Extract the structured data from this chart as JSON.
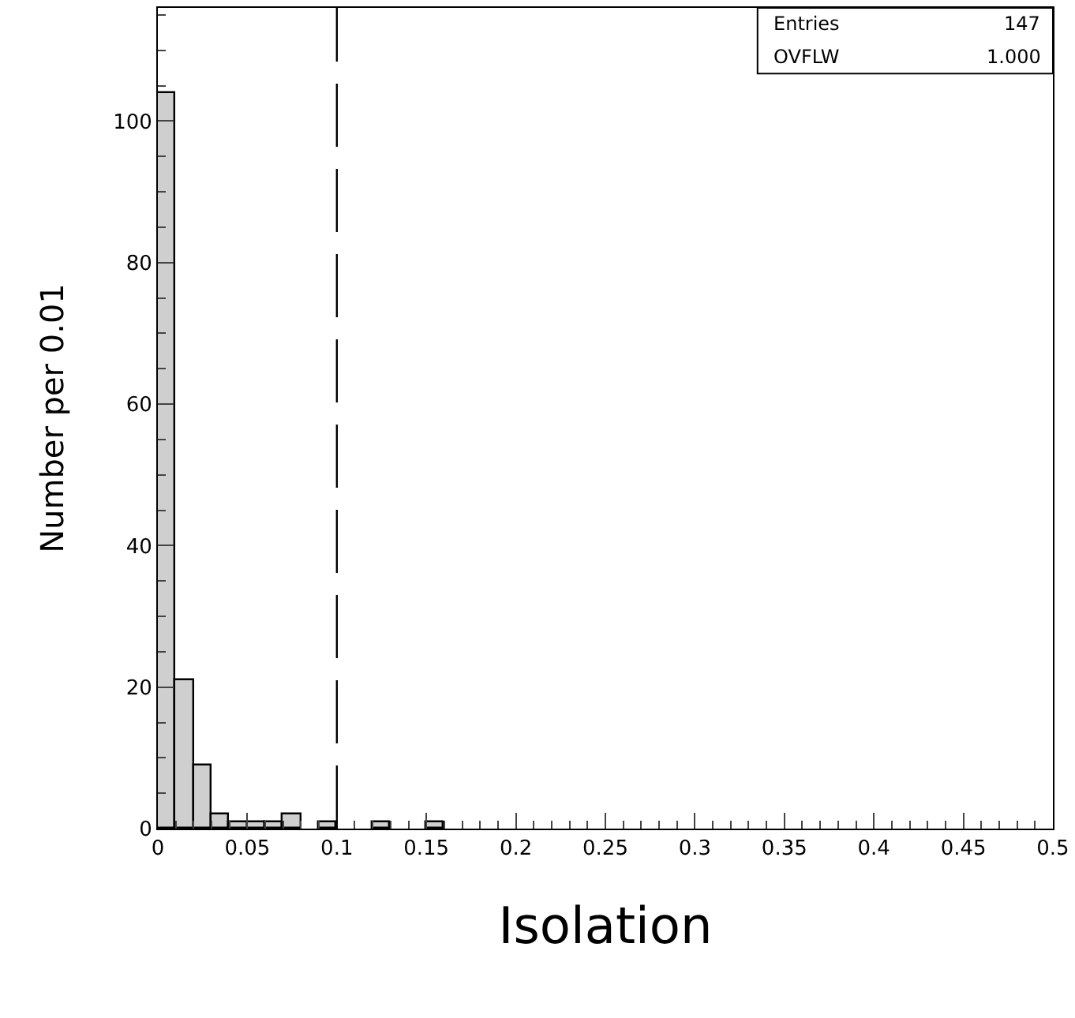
{
  "chart_data": {
    "type": "histogram",
    "xlabel": "Isolation",
    "ylabel": "Number per 0.01",
    "bins": [
      0,
      0.01,
      0.02,
      0.03,
      0.04,
      0.05,
      0.06,
      0.07,
      0.08,
      0.09,
      0.1,
      0.11,
      0.12,
      0.13,
      0.14,
      0.15,
      0.16,
      0.17,
      0.18,
      0.19,
      0.2,
      0.21,
      0.22,
      0.23,
      0.24,
      0.25,
      0.26,
      0.27,
      0.28,
      0.29,
      0.3,
      0.31,
      0.32,
      0.33,
      0.34,
      0.35,
      0.36,
      0.37,
      0.38,
      0.39,
      0.4,
      0.41,
      0.42,
      0.43,
      0.44,
      0.45,
      0.46,
      0.47,
      0.48,
      0.49,
      0.5
    ],
    "values": [
      104,
      21,
      9,
      2,
      1,
      1,
      1,
      2,
      0,
      1,
      0,
      0,
      1,
      0,
      0,
      1,
      0,
      0,
      0,
      0,
      0,
      0,
      0,
      0,
      0,
      0,
      0,
      0,
      0,
      0,
      0,
      0,
      0,
      0,
      0,
      0,
      0,
      0,
      0,
      0,
      0,
      0,
      0,
      0,
      0,
      0,
      0,
      0,
      0,
      0
    ],
    "color": "#cfcfcf",
    "xlim": [
      0,
      0.5
    ],
    "ylim": [
      0,
      116
    ],
    "xticks": [
      0,
      0.05,
      0.1,
      0.15,
      0.2,
      0.25,
      0.3,
      0.35,
      0.4,
      0.45,
      0.5
    ],
    "yticks": [
      0,
      20,
      40,
      60,
      80,
      100
    ],
    "ref_lines": [
      {
        "axis": "x",
        "value": 0.1,
        "line_style": "dashed",
        "color": "#000000"
      }
    ],
    "annotations": [
      "Entries",
      "147",
      "OVFLW",
      "1.000"
    ]
  }
}
